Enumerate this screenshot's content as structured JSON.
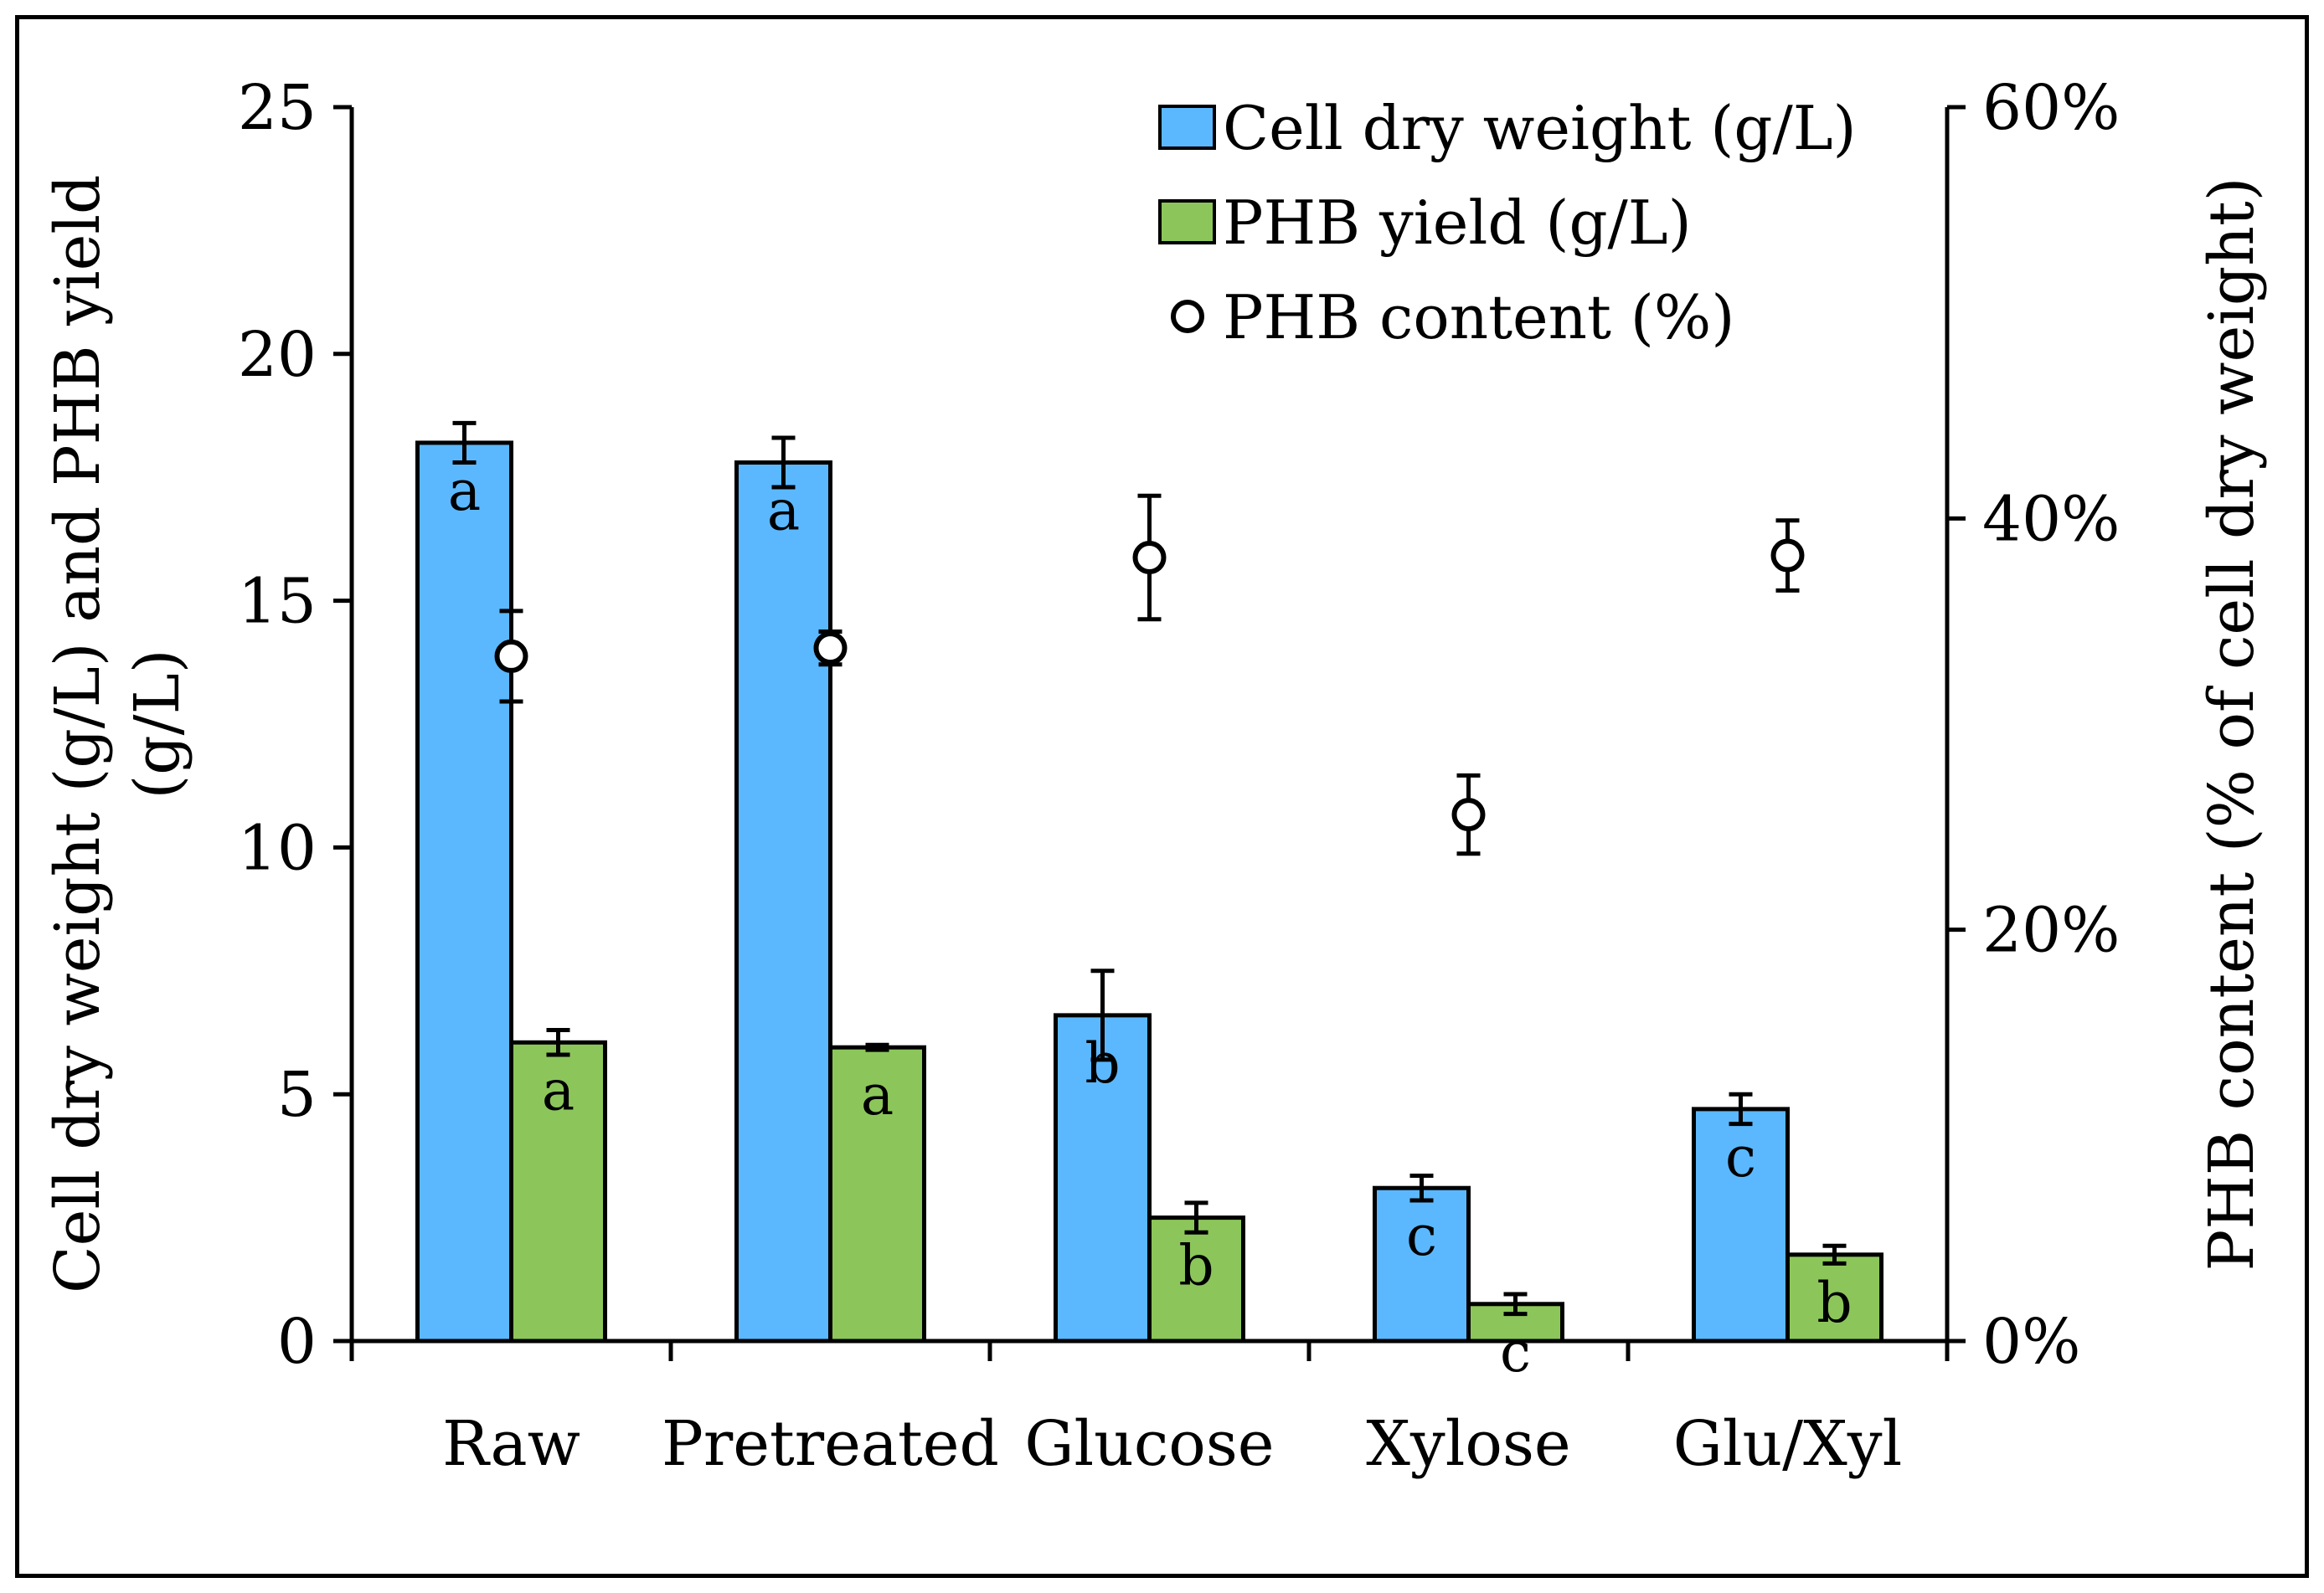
{
  "chart_data": {
    "type": "bar",
    "categories": [
      "Raw",
      "Pretreated",
      "Glucose",
      "Xylose",
      "Glu/Xyl"
    ],
    "series": [
      {
        "name": "Cell dry weight (g/L)",
        "axis": "left",
        "color": "#5bb8ff",
        "values": [
          18.2,
          17.8,
          6.6,
          3.1,
          4.7
        ],
        "errors": [
          0.4,
          0.5,
          0.9,
          0.25,
          0.3
        ],
        "labels": [
          "a",
          "a",
          "b",
          "c",
          "c"
        ]
      },
      {
        "name": "PHB yield (g/L)",
        "axis": "left",
        "color": "#8cc65a",
        "values": [
          6.05,
          5.95,
          2.5,
          0.75,
          1.75
        ],
        "errors": [
          0.25,
          0.05,
          0.3,
          0.2,
          0.18
        ],
        "labels": [
          "a",
          "a",
          "b",
          "c",
          "b"
        ]
      },
      {
        "name": "PHB content (%)",
        "axis": "right",
        "type": "scatter",
        "marker": "open-circle",
        "values": [
          33.3,
          33.7,
          38.1,
          25.6,
          38.2
        ],
        "errors": [
          2.2,
          0.8,
          3.0,
          1.9,
          1.7
        ]
      }
    ],
    "y_left": {
      "label_lines": [
        "Cell dry weight (g/L) and PHB yield",
        "(g/L)"
      ],
      "ylim": [
        0,
        25
      ],
      "ticks": [
        "0",
        "5",
        "10",
        "15",
        "20",
        "25"
      ]
    },
    "y_right": {
      "label": "PHB content (% of cell dry weight)",
      "ylim": [
        0,
        60
      ],
      "ticks": [
        "0%",
        "20%",
        "40%",
        "60%"
      ]
    },
    "xlabel": "",
    "legend_position": "top-right",
    "grid": false,
    "label_color": "#c00000"
  }
}
